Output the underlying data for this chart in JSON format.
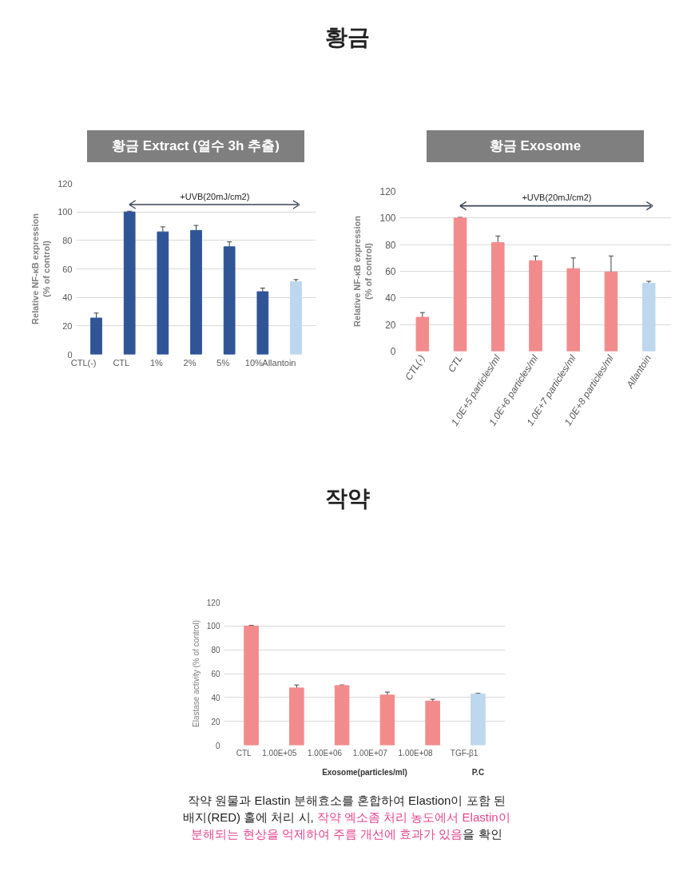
{
  "chart_data": [
    {
      "type": "other",
      "title": "황금"
    },
    {
      "type": "bar",
      "title": "황금 Extract (열수 3h 추출)",
      "ylabel": "Relative NF-κB expression\n(% of control)",
      "categories": [
        "CTL(-)",
        "CTL",
        "1%",
        "2%",
        "5%",
        "10%",
        "Allantoin"
      ],
      "values": [
        25.5,
        100,
        86,
        87,
        75.5,
        44,
        51
      ],
      "errors": [
        3.5,
        0.5,
        3.5,
        3.5,
        3.5,
        2.5,
        1.5
      ],
      "colors": [
        "#2f5597",
        "#2f5597",
        "#2f5597",
        "#2f5597",
        "#2f5597",
        "#2f5597",
        "#bdd7ee"
      ],
      "ylim": [
        0,
        120
      ],
      "yticks": [
        0,
        20,
        40,
        60,
        80,
        100,
        120
      ],
      "grid": "y",
      "annotations": [
        "+UVB(20mJ/cm2)"
      ]
    },
    {
      "type": "bar",
      "title": "황금 Exosome",
      "ylabel": "Relative NF-κB expression\n(% of control)",
      "categories": [
        "CTL(-)",
        "CTL",
        "1.0E+5 particles/ml",
        "1.0E+6 particles/ml",
        "1.0E+7 particles/ml",
        "1.0E+8 particles/ml",
        "Allantoin"
      ],
      "values": [
        25.5,
        100,
        81.5,
        68,
        62,
        59.5,
        51
      ],
      "errors": [
        3.5,
        0.5,
        5,
        3.5,
        8,
        12,
        1.5
      ],
      "colors": [
        "#f28b8c",
        "#f28b8c",
        "#f28b8c",
        "#f28b8c",
        "#f28b8c",
        "#f28b8c",
        "#bdd7ee"
      ],
      "ylim": [
        0,
        120
      ],
      "yticks": [
        0,
        20,
        40,
        60,
        80,
        100,
        120
      ],
      "grid": "y",
      "annotations": [
        "+UVB(20mJ/cm2)"
      ]
    },
    {
      "type": "other",
      "title": "작약"
    },
    {
      "type": "bar",
      "ylabel": "Elastase activity (% of control)",
      "xlabel": "Exosome(particles/ml)",
      "categories": [
        "CTL",
        "1.00E+05",
        "1.00E+06",
        "1.00E+07",
        "1.00E+08",
        "TGF-β1"
      ],
      "values": [
        100,
        48,
        50,
        42,
        37,
        43
      ],
      "errors": [
        0.5,
        2.5,
        0.5,
        2.5,
        1.5,
        0.5
      ],
      "colors": [
        "#f28b8c",
        "#f28b8c",
        "#f28b8c",
        "#f28b8c",
        "#f28b8c",
        "#bdd7ee"
      ],
      "ylim": [
        0,
        120
      ],
      "yticks": [
        0,
        20,
        40,
        60,
        80,
        100,
        120
      ],
      "grid": "y",
      "annotations": [
        "P.C",
        "작약 원물과 Elastin 분해효소를 혼합하여 Elastion이 포함 된",
        "배지(RED) 홀에 처리 시,",
        "작약 엑소좀 처리 농도에서 Elastin이",
        "분해되는 현상을 억제하여 주름 개선에 효과가 있음",
        "을 확인"
      ]
    }
  ]
}
